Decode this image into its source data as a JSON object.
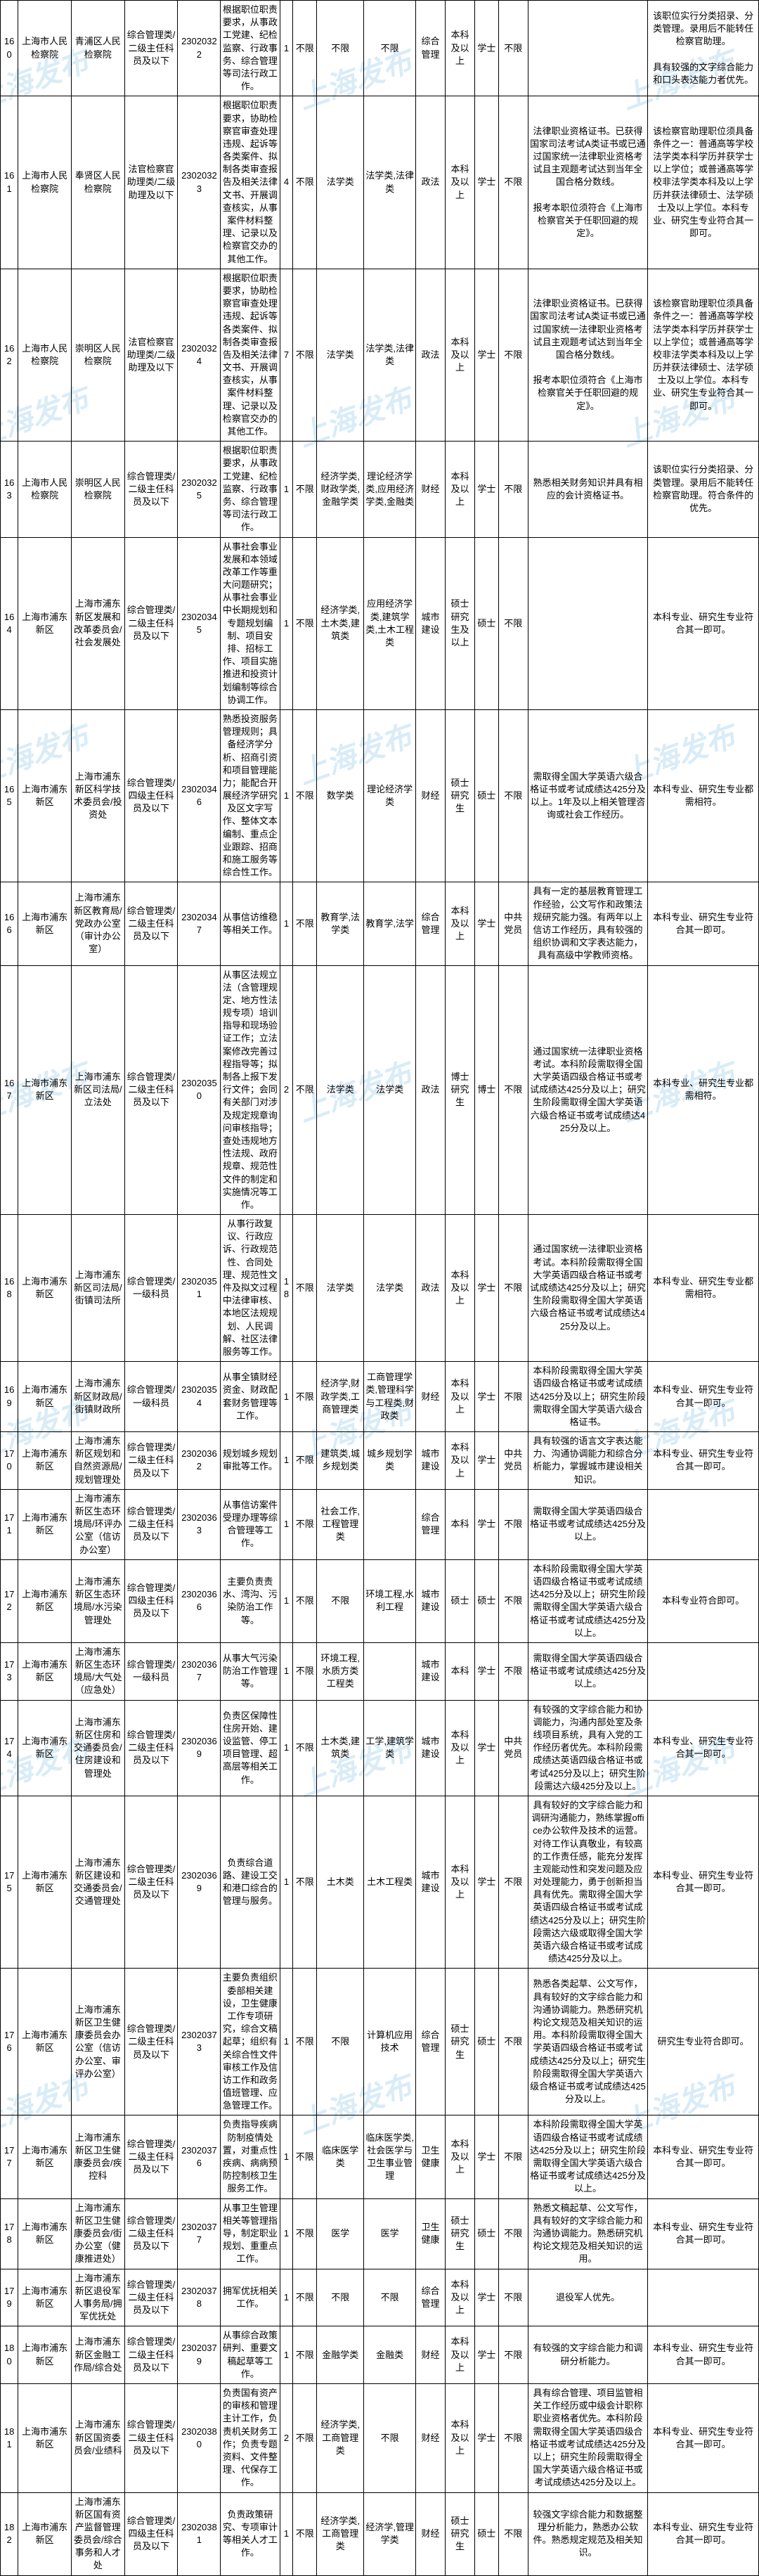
{
  "watermark_text": "上海发布",
  "columns": [
    "c0",
    "c1",
    "c2",
    "c3",
    "c4",
    "c5",
    "c6",
    "c7",
    "c8",
    "c9",
    "c10",
    "c11",
    "c12",
    "c13",
    "c14",
    "c15"
  ],
  "rows": [
    {
      "cells": [
        "160",
        "上海市人民检察院",
        "青浦区人民检察院",
        "综合管理类/二级主任科员及以下",
        "23020322",
        "根据职位职责要求，从事政工党建、纪检监察、行政事务、综合管理等司法行政工作。",
        "1",
        "不限",
        "不限",
        "不限",
        "综合管理",
        "本科及以上",
        "学士",
        "不限",
        "",
        "该职位实行分类招录、分类管理。录用后不能转任检察官助理。\n\n具有较强的文字综合能力和口头表达能力者优先。"
      ]
    },
    {
      "cells": [
        "161",
        "上海市人民检察院",
        "奉贤区人民检察院",
        "法官检察官助理类/二级助理及以下",
        "23020323",
        "根据职位职责要求，协助检察官审查处理违规、起诉等各类案件、拟制各类审查报告及相关法律文书、开展调查核实，从事案件材料整理、记录以及检察官交办的其他工作。",
        "4",
        "不限",
        "法学类",
        "法学类,法律类",
        "政法",
        "本科及以上",
        "学士",
        "不限",
        "法律职业资格证书。已获得国家司法考试A类证书或已通过国家统一法律职业资格考试且主观题考试达到当年全国合格分数线。\n\n报考本职位须符合《上海市检察官关于任职回避的规定》。",
        "该检察官助理职位须具备条件之一：普通高等学校法学类本科学历并获学士以上学位；或普通高等学校非法学类本科及以上学历并获法律硕士、法学硕士及以上学位。本科专业、研究生专业符合其一即可。"
      ]
    },
    {
      "cells": [
        "162",
        "上海市人民检察院",
        "崇明区人民检察院",
        "法官检察官助理类/二级助理及以下",
        "23020324",
        "根据职位职责要求，协助检察官审查处理违规、起诉等各类案件、拟制各类审查报告及相关法律文书、开展调查核实，从事案件材料整理、记录以及检察官交办的其他工作。",
        "7",
        "不限",
        "法学类",
        "法学类,法律类",
        "政法",
        "本科及以上",
        "学士",
        "不限",
        "法律职业资格证书。已获得国家司法考试A类证书或已通过国家统一法律职业资格考试且主观题考试达到当年全国合格分数线。\n\n报考本职位须符合《上海市检察官关于任职回避的规定》。",
        "该检察官助理职位须具备条件之一：普通高等学校法学类本科学历并获学士以上学位；或普通高等学校非法学类本科及以上学历并获法律硕士、法学硕士及以上学位。本科专业、研究生专业符合其一即可。"
      ]
    },
    {
      "cells": [
        "163",
        "上海市人民检察院",
        "崇明区人民检察院",
        "综合管理类/二级主任科员及以下",
        "23020325",
        "根据职位职责要求，从事政工党建、纪检监察、行政事务、综合管理等司法行政工作。",
        "1",
        "不限",
        "经济学类,财政学类,金融学类",
        "理论经济学类,应用经济学类,金融类",
        "财经",
        "本科及以上",
        "学士",
        "不限",
        "熟悉相关财务知识并具有相应的会计资格证书。",
        "该职位实行分类招录、分类管理。录用后不能转任检察官助理。符合条件的优先。"
      ]
    },
    {
      "cells": [
        "164",
        "上海市浦东新区",
        "上海市浦东新区发展和改革委员会/社会发展处",
        "综合管理类/二级主任科员及以下",
        "23020345",
        "从事社会事业发展和本领域改革工作等重大问题研究；从事社会事业中长期规划和专题规划编制、项目安排、招标工作、项目实施推进和投资计划编制等综合协调工作。",
        "1",
        "不限",
        "经济学类,土木类,建筑类",
        "应用经济学类,建筑学类,土木工程类",
        "城市建设",
        "硕士研究生及以上",
        "硕士",
        "不限",
        "",
        "本科专业、研究生专业符合其一即可。"
      ]
    },
    {
      "cells": [
        "165",
        "上海市浦东新区",
        "上海市浦东新区科学技术委员会/投资处",
        "综合管理类/四级主任科员及以下",
        "23020346",
        "熟悉投资服务管理规则；具备经济学分析、招商引资和项目管理能力；能配合开展经济学研究及区文字写作、整体文本编制、重点企业跟踪、招商和施工服务等综合性工作。",
        "1",
        "不限",
        "数学类",
        "理论经济学类",
        "财经",
        "硕士研究生",
        "硕士",
        "不限",
        "需取得全国大学英语六级合格证书或考试成绩达425分及以上。1年及以上相关管理咨询或社会工作经历。",
        "本科专业、研究生专业都需相符。"
      ]
    },
    {
      "cells": [
        "166",
        "上海市浦东新区",
        "上海市浦东新区教育局/党政办公室（审计办公室）",
        "综合管理类/二级主任科员及以下",
        "23020347",
        "从事信访维稳等相关工作。",
        "1",
        "不限",
        "教育学,法学类",
        "教育学,法学",
        "综合管理",
        "本科及以上",
        "学士",
        "中共党员",
        "具有一定的基层教育管理工作经验，公文写作和政策法规研究能力强。有两年以上信访工作经历，具有较强的组织协调和文字表达能力，具有高级中学教师资格。",
        "本科专业、研究生专业符合其一即可。"
      ]
    },
    {
      "cells": [
        "167",
        "上海市浦东新区",
        "上海市浦东新区司法局/立法处",
        "综合管理类/二级主任科员及以下",
        "23020350",
        "从事区法规立法（含管理规定、地方性法规专项）培训指导和现场验证工作；立法案修改完善过程指导等；拟制各上报下发行文件；会同有关部门对涉及规定规章询问审核指导；查处违规地方性法规、政府规章、规范性文件的制定和实施情况等工作。",
        "2",
        "不限",
        "法学类",
        "法学类",
        "政法",
        "博士研究生",
        "博士",
        "不限",
        "通过国家统一法律职业资格考试。本科阶段需取得全国大学英语四级合格证书或考试成绩达425分及以上；研究生阶段需取得全国大学英语六级合格证书或考试成绩达425分及以上。",
        "本科专业、研究生专业都需相符。"
      ]
    },
    {
      "cells": [
        "168",
        "上海市浦东新区",
        "上海市浦东新区司法局/街镇司法所",
        "综合管理类/一级科员",
        "23020351",
        "从事行政复议、行政应诉、行政规范性、合同处理、规范性文件及拟文过程中法律审核、本地区法规规划、人民调解、社区法律服务等工作。",
        "18",
        "不限",
        "法学类",
        "法学类",
        "政法",
        "本科及以上",
        "学士",
        "不限",
        "通过国家统一法律职业资格考试。本科阶段需取得全国大学英语四级合格证书或考试成绩达425分及以上；研究生阶段需取得全国大学英语六级合格证书或考试成绩达425分及以上。",
        "本科专业、研究生专业都需相符。"
      ]
    },
    {
      "cells": [
        "169",
        "上海市浦东新区",
        "上海市浦东新区财政局/街镇财政所",
        "综合管理类/一级科员",
        "23020354",
        "从事全镇财经资金、财政配套财务管理等工作。",
        "1",
        "不限",
        "经济学,财政学类,工商管理类",
        "工商管理学类,管理科学与工程类,财政类",
        "财经",
        "本科及以上",
        "学士",
        "不限",
        "本科阶段需取得全国大学英语四级合格证书或考试成绩达425分及以上；研究生阶段需取得全国大学英语六级合格证书。",
        "本科专业、研究生专业符合其一即可。"
      ]
    },
    {
      "cells": [
        "170",
        "上海市浦东新区",
        "上海市浦东新区规划和自然资源局/规划管理处",
        "综合管理类/二级主任科员及以下",
        "23020362",
        "规划城乡规划审批等工作。",
        "1",
        "不限",
        "建筑类,城乡规划类",
        "城乡规划学类",
        "城市建设",
        "本科及以上",
        "学士",
        "中共党员",
        "具有较强的语言文字表达能力、沟通协调能力和综合分析能力，掌握城市建设相关知识。",
        "本科专业、研究生专业符合其一即可。"
      ]
    },
    {
      "cells": [
        "171",
        "上海市浦东新区",
        "上海市浦东新区生态环境局/环评办公室（信访办公室）",
        "综合管理类/二级主任科员及以下",
        "23020363",
        "从事信访案件受理办理等综合管理等工作。",
        "1",
        "不限",
        "社会工作,工程管理类",
        "",
        "综合管理",
        "本科",
        "学士",
        "不限",
        "需取得全国大学英语四级合格证书或考试成绩达425分及以上。",
        ""
      ]
    },
    {
      "cells": [
        "172",
        "上海市浦东新区",
        "上海市浦东新区生态环境局/水污染管理处",
        "综合管理类/四级主任科员及以下",
        "23020366",
        "主要负责责水、湾沟、污染防治工作等。",
        "1",
        "不限",
        "不限",
        "环境工程,水利工程",
        "城市建设",
        "硕士",
        "硕士",
        "不限",
        "本科阶段需取得全国大学英语四级合格证书或考试成绩达425分及以上；研究生阶段需取得全国大学英语六级合格证书或考试成绩达425分及以上。",
        "本科专业符合即可。"
      ]
    },
    {
      "cells": [
        "173",
        "上海市浦东新区",
        "上海市浦东新区生态环境局/大气处（应急处）",
        "综合管理类/一级科员",
        "23020367",
        "从事大气污染防治工作管理等。",
        "1",
        "不限",
        "环境工程,水质方类工程类",
        "",
        "城市建设",
        "本科",
        "学士",
        "不限",
        "需取得全国大学英语四级合格证书或考试成绩达425分及以上。",
        ""
      ]
    },
    {
      "cells": [
        "174",
        "上海市浦东新区",
        "上海市浦东新区住房和交通委员会/住房建设和管理处",
        "综合管理类/二级主任科员及以下",
        "23020369",
        "负责区保障性住房开始、建设监管、停工项目管理、超高层等相关工作。",
        "1",
        "不限",
        "土木类,建筑类",
        "工学,建筑学类",
        "城市建设",
        "本科及以上",
        "学士",
        "中共党员",
        "有较强的文字综合能力和协调能力，沟通内部处室及条线项目系统，具有入党的工作经历者优先。本科阶段需成绩达英语四级合格证书或考试425分及以上；研究生阶段需达六级425分及以上。",
        "本科专业、研究生专业符合其一即可。"
      ]
    },
    {
      "cells": [
        "175",
        "上海市浦东新区",
        "上海市浦东新区建设和交通委员会/交通管理处",
        "综合管理类/二级主任科员及以下",
        "23020369",
        "负责综合道路、建设工交和港口综合的管理与服务。",
        "1",
        "不限",
        "土木类",
        "土木工程类",
        "城市建设",
        "本科及以上",
        "学士",
        "不限",
        "具有较好的文字综合能力和调研沟通能力，熟练掌握office办公软件及技术的运营。对待工作认真敬业，有较高的工作责任感，能充分发挥主观能动性和突发问题及应对处理能力，勇于创新担当具有优先。需取得全国大学英语四级合格证书或考试成绩达425分及以上；研究生阶段需达六级或取得全国大学英语六级合格证书或考试成绩达425分及以上。",
        "本科专业、研究生专业符合其一即可。"
      ]
    },
    {
      "cells": [
        "176",
        "上海市浦东新区",
        "上海市浦东新区卫生健康委员会办公室（信访办公室、审评办公室）",
        "综合管理类/二级主任科员及以下",
        "23020373",
        "主要负责组织委部相关建设，卫生健康工作专项研究，综合文稿起草；组织有关综合性文件审核工作及信访工作和政务值班管理、应急管理工作。",
        "1",
        "不限",
        "不限",
        "计算机应用技术",
        "综合管理",
        "硕士研究生",
        "硕士",
        "不限",
        "熟悉各类起草、公文写作，具有较好的文字综合能力和沟通协调能力。熟悉研究机构论文规范及相关知识的运用。本科阶段需取得全国大学英语四级合格证书或考试成绩达425分及以上；研究生阶段需取得全国大学英语六级合格证书或考试成绩达425分及以上。",
        "研究生专业符合即可。"
      ]
    },
    {
      "cells": [
        "177",
        "上海市浦东新区",
        "上海市浦东新区卫生健康委员会/疾控科",
        "综合管理类/二级主任科员及以下",
        "23020376",
        "负责指导疾病防制疫情处置，对重点性疾病、病病预防控制核卫生服务工作。",
        "1",
        "不限",
        "临床医学类",
        "临床医学类,社会医学与卫生事业管理",
        "卫生健康",
        "本科及以上",
        "学士",
        "不限",
        "本科阶段需取得全国大学英语四级合格证书或考试成绩达425分及以上；研究生阶段需取得全国大学英语六级合格证书或考试成绩达425分及以上。",
        "本科专业、研究生专业符合其一即可。"
      ]
    },
    {
      "cells": [
        "178",
        "上海市浦东新区",
        "上海市浦东新区卫生健康委员会/街办公室（健康推进处）",
        "综合管理类/二级主任科员及以下",
        "23020377",
        "从事卫生管理相关等管理指导，制定职业规划、重重点工作。",
        "1",
        "不限",
        "医学",
        "医学",
        "卫生健康",
        "硕士研究生",
        "硕士",
        "不限",
        "熟悉文稿起草、公文写作，具有较好的文字综合能力和沟通协调能力。熟悉研究机构论文规范及相关知识的运用。",
        "本科专业、研究生专业符合其一即可。"
      ]
    },
    {
      "cells": [
        "179",
        "上海市浦东新区",
        "上海市浦东新区退役军人事务局/拥军优抚处",
        "综合管理类/二级主任科员及以下",
        "23020378",
        "拥军优抚相关工作。",
        "1",
        "不限",
        "不限",
        "不限",
        "综合管理",
        "本科及以上",
        "学士",
        "不限",
        "退役军人优先。",
        ""
      ]
    },
    {
      "cells": [
        "180",
        "上海市浦东新区",
        "上海市浦东新区金融工作局/综合处",
        "综合管理类/二级主任科员及以下",
        "23020379",
        "从事综合政策研判、重要文稿起草等工作。",
        "1",
        "不限",
        "金融学类",
        "金融类",
        "财经",
        "本科及以上",
        "学士",
        "不限",
        "有较强的文字综合能力和调研分析能力。",
        "本科专业、研究生专业符合其一即可。"
      ]
    },
    {
      "cells": [
        "181",
        "上海市浦东新区",
        "上海市浦东新区国资委员会/业绩科",
        "综合管理类/二级主任科员及以下",
        "23020380",
        "负责国有资产的审核和管理主计工作，负责机关财务工作；负责专题资料、文件整理、代保存工作。",
        "2",
        "不限",
        "经济学类,工商管理类",
        "不限",
        "财经",
        "本科及以上",
        "学士",
        "不限",
        "具有综合管理、项目监管相关工作经历或中级会计职称职业资格者优先。本科阶段需取得全国大学英语四级合格证书或考试成绩达425分及以上；研究生阶段需取得全国大学英语六级合格证书或考试成绩达425分及以上。",
        "本科专业、研究生专业符合其一即可。"
      ]
    },
    {
      "cells": [
        "182",
        "上海市浦东新区",
        "上海市浦东新区国有资产监督管理委员会/综合事务和人才处",
        "综合管理类/四级主任科员及以下",
        "23020381",
        "负责政策研究、专项审计等相关人才工作。",
        "1",
        "不限",
        "经济学类,工商管理类",
        "经济学,管理学类",
        "财经",
        "硕士研究生",
        "硕士",
        "不限",
        "较强文字综合能力和数据整理分析能力，熟悉办公软件。熟悉规定规范及相关知识。",
        "本科专业、研究生专业符合其一即可。"
      ]
    }
  ]
}
